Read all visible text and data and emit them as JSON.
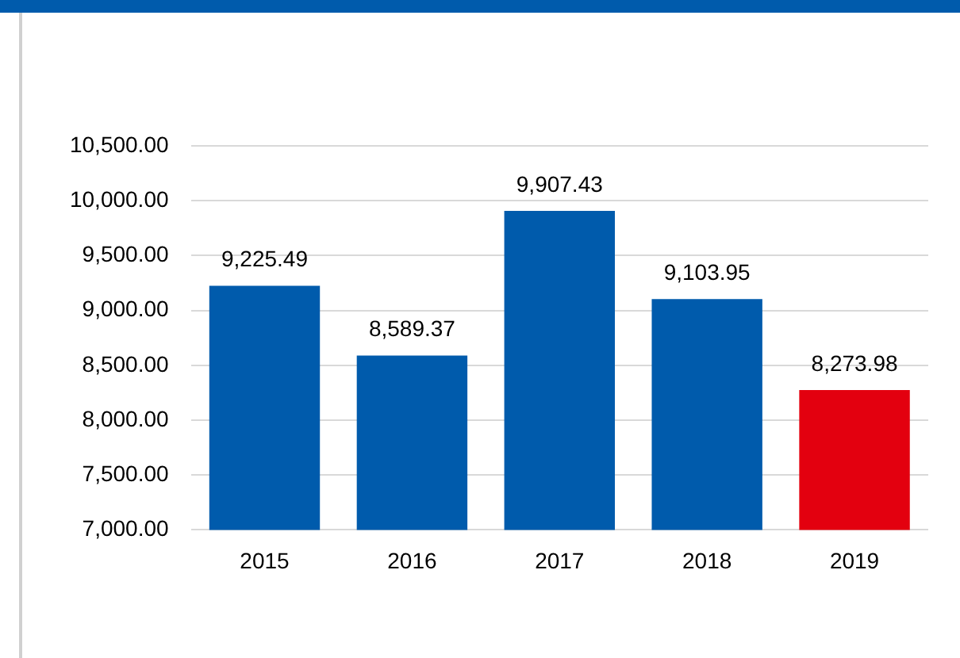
{
  "chart_data": {
    "type": "bar",
    "categories": [
      "2015",
      "2016",
      "2017",
      "2018",
      "2019"
    ],
    "values": [
      9225.49,
      8589.37,
      9907.43,
      9103.95,
      8273.98
    ],
    "colors": [
      "#005bac",
      "#005bac",
      "#005bac",
      "#005bac",
      "#e3000f"
    ],
    "ylim": [
      7000,
      10500
    ],
    "yticks": [
      {
        "value": 7000,
        "label": "7,000.00"
      },
      {
        "value": 7500,
        "label": "7,500.00"
      },
      {
        "value": 8000,
        "label": "8,000.00"
      },
      {
        "value": 8500,
        "label": "8,500.00"
      },
      {
        "value": 9000,
        "label": "9,000.00"
      },
      {
        "value": 9500,
        "label": "9,500.00"
      },
      {
        "value": 10000,
        "label": "10,000.00"
      },
      {
        "value": 10500,
        "label": "10,500.00"
      }
    ],
    "value_labels": [
      "9,225.49",
      "8,589.37",
      "9,907.43",
      "9,103.95",
      "8,273.98"
    ],
    "grid": "y"
  }
}
